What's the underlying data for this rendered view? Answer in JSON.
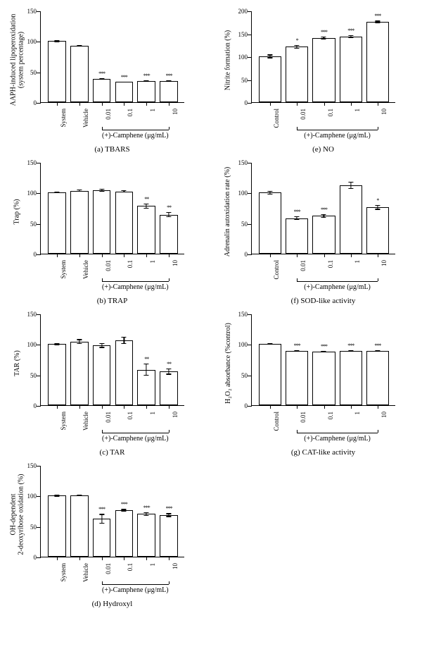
{
  "figure": {
    "background_color": "#ffffff",
    "bar_fill": "#ffffff",
    "bar_border": "#000000",
    "font_family": "Times New Roman",
    "label_fontsize": 10,
    "tick_fontsize": 9
  },
  "panels": [
    {
      "id": "a",
      "subtitle": "(a) TBARS",
      "row": 0,
      "col": 0,
      "ylabel": "AAPH-induced lipoperoxidation\n(system percentage)",
      "ylim": [
        0,
        150
      ],
      "ytick_step": 50,
      "x_control_count": 2,
      "x_bracket_label": "(+)-Camphene (μg/mL)",
      "bars": [
        {
          "label": "System",
          "value": 100,
          "error": 2,
          "sig": ""
        },
        {
          "label": "Vehicle",
          "value": 92,
          "error": 1,
          "sig": ""
        },
        {
          "label": "0.01",
          "value": 38,
          "error": 1,
          "sig": "***"
        },
        {
          "label": "0.1",
          "value": 33,
          "error": 1,
          "sig": "***"
        },
        {
          "label": "1",
          "value": 35,
          "error": 1,
          "sig": "***"
        },
        {
          "label": "10",
          "value": 35,
          "error": 1,
          "sig": "***"
        }
      ]
    },
    {
      "id": "e",
      "subtitle": "(e) NO",
      "row": 0,
      "col": 1,
      "ylabel": "Nitrite formation (%)",
      "ylim": [
        0,
        200
      ],
      "ytick_step": 50,
      "x_control_count": 1,
      "x_bracket_label": "(+)-Camphene (μg/mL)",
      "bars": [
        {
          "label": "Control",
          "value": 100,
          "error": 4,
          "sig": ""
        },
        {
          "label": "0.01",
          "value": 121,
          "error": 4,
          "sig": "*"
        },
        {
          "label": "0.1",
          "value": 140,
          "error": 3,
          "sig": "***"
        },
        {
          "label": "1",
          "value": 143,
          "error": 3,
          "sig": "***"
        },
        {
          "label": "10",
          "value": 175,
          "error": 3,
          "sig": "***"
        }
      ]
    },
    {
      "id": "b",
      "subtitle": "(b) TRAP",
      "row": 1,
      "col": 0,
      "ylabel": "Trap (%)",
      "ylim": [
        0,
        150
      ],
      "ytick_step": 50,
      "x_control_count": 2,
      "x_bracket_label": "(+)-Camphene (μg/mL)",
      "bars": [
        {
          "label": "System",
          "value": 100,
          "error": 1,
          "sig": ""
        },
        {
          "label": "Vehicle",
          "value": 103,
          "error": 2,
          "sig": ""
        },
        {
          "label": "0.01",
          "value": 104,
          "error": 2,
          "sig": ""
        },
        {
          "label": "0.1",
          "value": 102,
          "error": 2,
          "sig": ""
        },
        {
          "label": "1",
          "value": 78,
          "error": 4,
          "sig": "**"
        },
        {
          "label": "10",
          "value": 64,
          "error": 4,
          "sig": "**"
        }
      ]
    },
    {
      "id": "f",
      "subtitle": "(f) SOD-like activity",
      "row": 1,
      "col": 1,
      "ylabel": "Adrenalin autoxidation rate (%)",
      "ylim": [
        0,
        150
      ],
      "ytick_step": 50,
      "x_control_count": 1,
      "x_bracket_label": "(+)-Camphene (μg/mL)",
      "bars": [
        {
          "label": "Control",
          "value": 100,
          "error": 3,
          "sig": ""
        },
        {
          "label": "0.01",
          "value": 58,
          "error": 3,
          "sig": "***"
        },
        {
          "label": "0.1",
          "value": 62,
          "error": 3,
          "sig": "***"
        },
        {
          "label": "1",
          "value": 112,
          "error": 6,
          "sig": ""
        },
        {
          "label": "10",
          "value": 76,
          "error": 4,
          "sig": "*"
        }
      ]
    },
    {
      "id": "c",
      "subtitle": "(c) TAR",
      "row": 2,
      "col": 0,
      "ylabel": "TAR (%)",
      "ylim": [
        0,
        150
      ],
      "ytick_step": 50,
      "x_control_count": 2,
      "x_bracket_label": "(+)-Camphene (μg/mL)",
      "bars": [
        {
          "label": "System",
          "value": 100,
          "error": 2,
          "sig": ""
        },
        {
          "label": "Vehicle",
          "value": 104,
          "error": 4,
          "sig": ""
        },
        {
          "label": "0.01",
          "value": 98,
          "error": 4,
          "sig": ""
        },
        {
          "label": "0.1",
          "value": 106,
          "error": 6,
          "sig": ""
        },
        {
          "label": "1",
          "value": 58,
          "error": 10,
          "sig": "**"
        },
        {
          "label": "10",
          "value": 55,
          "error": 5,
          "sig": "**"
        }
      ]
    },
    {
      "id": "g",
      "subtitle": "(g) CAT-like activity",
      "row": 2,
      "col": 1,
      "ylabel": "H₂O₂ absorbance (%control)",
      "ylim": [
        0,
        150
      ],
      "ytick_step": 50,
      "x_control_count": 1,
      "x_bracket_label": "(+)-Camphene (μg/mL)",
      "bars": [
        {
          "label": "Control",
          "value": 100,
          "error": 1,
          "sig": ""
        },
        {
          "label": "0.01",
          "value": 89,
          "error": 1,
          "sig": "***"
        },
        {
          "label": "0.1",
          "value": 88,
          "error": 1,
          "sig": "***"
        },
        {
          "label": "1",
          "value": 89,
          "error": 1,
          "sig": "***"
        },
        {
          "label": "10",
          "value": 89,
          "error": 1,
          "sig": "***"
        }
      ]
    },
    {
      "id": "d",
      "subtitle": "(d) Hydroxyl",
      "row": 3,
      "col": 0,
      "ylabel": "OH-dependent\n2-deoxyribose oxidation (%)",
      "ylim": [
        0,
        150
      ],
      "ytick_step": 50,
      "x_control_count": 2,
      "x_bracket_label": "(+)-Camphene (μg/mL)",
      "bars": [
        {
          "label": "System",
          "value": 100,
          "error": 2,
          "sig": ""
        },
        {
          "label": "Vehicle",
          "value": 100,
          "error": 1,
          "sig": ""
        },
        {
          "label": "0.01",
          "value": 62,
          "error": 8,
          "sig": "***"
        },
        {
          "label": "0.1",
          "value": 76,
          "error": 2,
          "sig": "***"
        },
        {
          "label": "1",
          "value": 70,
          "error": 3,
          "sig": "***"
        },
        {
          "label": "10",
          "value": 68,
          "error": 3,
          "sig": "***"
        }
      ]
    }
  ]
}
